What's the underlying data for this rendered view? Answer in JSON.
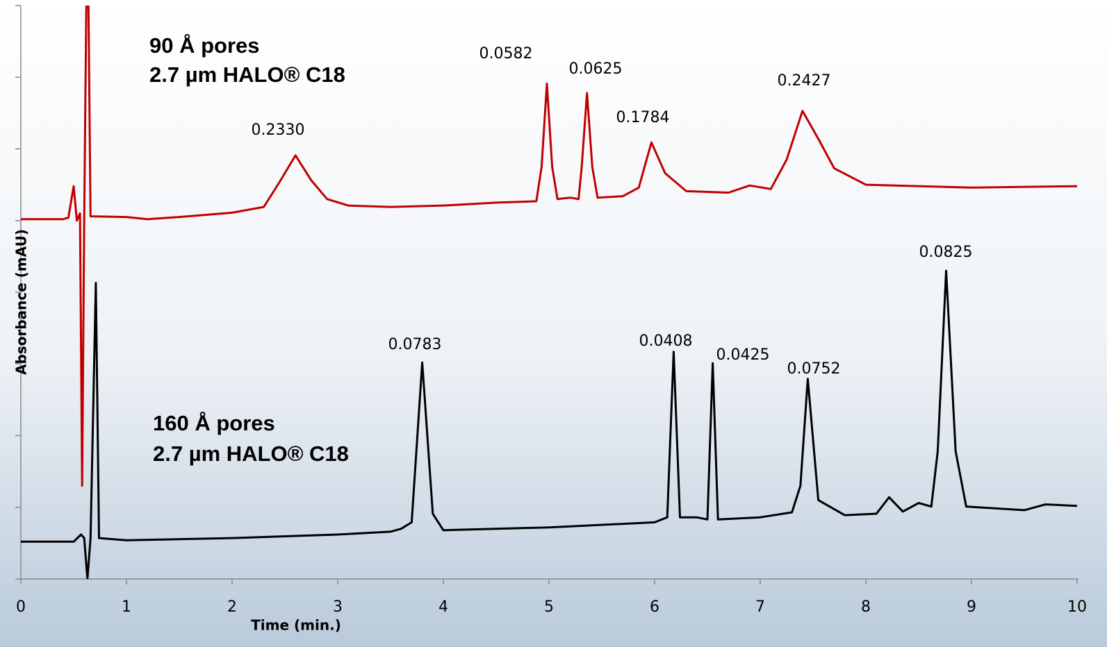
{
  "chart_data": {
    "type": "line",
    "x_label": "Time (min.)",
    "y_label": "Absorbance (mAU)",
    "xlim": [
      0,
      10
    ],
    "xticks": [
      0,
      1,
      2,
      3,
      4,
      5,
      6,
      7,
      8,
      9,
      10
    ],
    "ylim": [
      0,
      8
    ],
    "yticks": [
      0,
      1,
      2,
      3,
      4,
      5,
      6,
      7,
      8
    ],
    "series": [
      {
        "label": [
          "90 Å pores",
          "2.7 µm HALO® C18"
        ],
        "color": "#c00000",
        "peak_labels": [
          "0.2330",
          "0.0582",
          "0.0625",
          "0.1784",
          "0.2427"
        ],
        "x": [
          0,
          0.4,
          0.45,
          0.5,
          0.53,
          0.56,
          0.58,
          0.6,
          0.62,
          0.64,
          0.66,
          1.0,
          1.2,
          1.5,
          2.0,
          2.3,
          2.45,
          2.6,
          2.75,
          2.9,
          3.1,
          3.5,
          4.0,
          4.5,
          4.88,
          4.93,
          4.98,
          5.03,
          5.08,
          5.2,
          5.28,
          5.31,
          5.36,
          5.41,
          5.46,
          5.7,
          5.85,
          5.97,
          6.1,
          6.3,
          6.7,
          6.9,
          7.1,
          7.25,
          7.4,
          7.55,
          7.7,
          8.0,
          9.0,
          10
        ],
        "values": [
          5.02,
          5.02,
          5.04,
          5.48,
          5.0,
          5.1,
          1.3,
          5.03,
          8.0,
          8.0,
          5.06,
          5.05,
          5.02,
          5.05,
          5.11,
          5.19,
          5.54,
          5.91,
          5.56,
          5.3,
          5.21,
          5.19,
          5.21,
          5.25,
          5.27,
          5.75,
          6.91,
          5.75,
          5.3,
          5.32,
          5.3,
          5.75,
          6.78,
          5.75,
          5.32,
          5.34,
          5.46,
          6.09,
          5.66,
          5.41,
          5.39,
          5.49,
          5.44,
          5.85,
          6.53,
          6.14,
          5.73,
          5.5,
          5.46,
          5.48
        ]
      },
      {
        "label": [
          "160 Å pores",
          "2.7 µm HALO® C18"
        ],
        "color": "#000000",
        "peak_labels": [
          "0.0783",
          "0.0408",
          "0.0425",
          "0.0752",
          "0.0825"
        ],
        "x": [
          0,
          0.5,
          0.57,
          0.6,
          0.63,
          0.66,
          0.71,
          0.74,
          1.0,
          2.0,
          3.0,
          3.5,
          3.6,
          3.7,
          3.8,
          3.9,
          4.0,
          5.0,
          6.0,
          6.12,
          6.18,
          6.24,
          6.4,
          6.5,
          6.55,
          6.6,
          7.0,
          7.3,
          7.38,
          7.45,
          7.55,
          7.8,
          8.1,
          8.22,
          8.35,
          8.5,
          8.62,
          8.68,
          8.76,
          8.85,
          8.95,
          9.5,
          9.7,
          10
        ],
        "values": [
          0.52,
          0.52,
          0.62,
          0.57,
          0.0,
          0.57,
          4.13,
          0.57,
          0.54,
          0.57,
          0.62,
          0.66,
          0.7,
          0.79,
          3.02,
          0.91,
          0.68,
          0.72,
          0.79,
          0.86,
          3.17,
          0.86,
          0.86,
          0.83,
          3.01,
          0.83,
          0.86,
          0.93,
          1.3,
          2.79,
          1.1,
          0.89,
          0.91,
          1.14,
          0.94,
          1.06,
          1.01,
          1.78,
          4.3,
          1.78,
          1.01,
          0.96,
          1.04,
          1.02
        ]
      }
    ]
  }
}
